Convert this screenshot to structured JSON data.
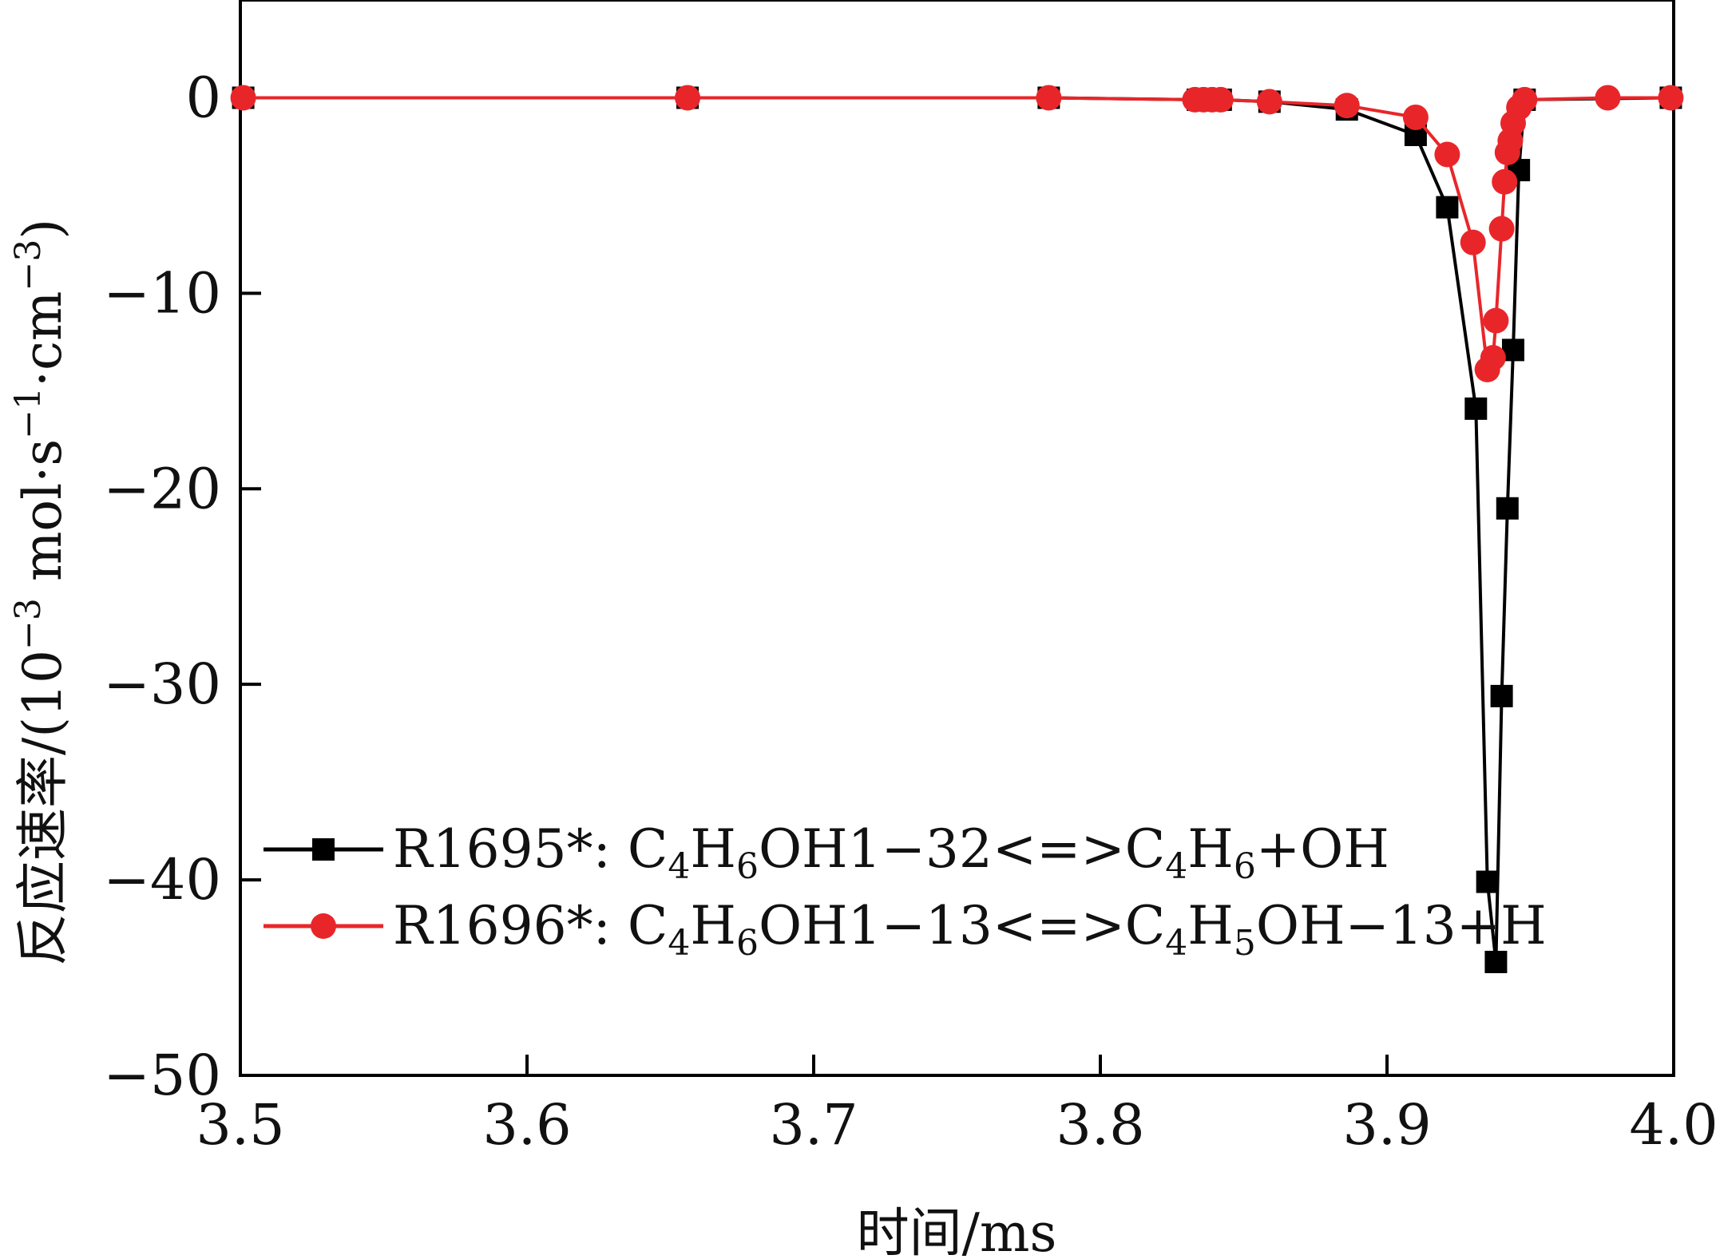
{
  "chart_data": {
    "type": "line",
    "xlabel": "时间/ms",
    "ylabel_main": "反应速率/(10",
    "ylabel_sup1": "−3",
    "ylabel_mid": " mol·s",
    "ylabel_sup2": "−1",
    "ylabel_mid2": "·cm",
    "ylabel_sup3": "−3",
    "ylabel_end": ")",
    "xlim": [
      3.5,
      4.0
    ],
    "ylim": [
      -50,
      5
    ],
    "x_ticks": [
      3.5,
      3.6,
      3.7,
      3.8,
      3.9,
      4.0
    ],
    "x_tick_labels": [
      "3.5",
      "3.6",
      "3.7",
      "3.8",
      "3.9",
      "4.0"
    ],
    "y_ticks": [
      0,
      -10,
      -20,
      -30,
      -40,
      -50
    ],
    "y_tick_labels": [
      "0",
      "−10",
      "−20",
      "−30",
      "−40",
      "−50"
    ],
    "grid": false,
    "legend_position": "lower-left",
    "series": [
      {
        "name": "R1695*: C4H6OH1−32<=>C4H6+OH",
        "legend": {
          "a": "R1695*: C",
          "s1": "4",
          "b": "H",
          "s2": "6",
          "c": "OH1−32<=>C",
          "s3": "4",
          "d": "H",
          "s4": "6",
          "e": "+OH",
          "s5": "",
          "f": ""
        },
        "color": "#000000",
        "marker": "square",
        "x": [
          3.501,
          3.656,
          3.782,
          3.834,
          3.838,
          3.842,
          3.859,
          3.886,
          3.91,
          3.921,
          3.931,
          3.935,
          3.938,
          3.94,
          3.942,
          3.944,
          3.946,
          3.948,
          3.999
        ],
        "y": [
          0,
          0,
          0,
          -0.1,
          -0.1,
          -0.1,
          -0.2,
          -0.6,
          -1.9,
          -5.6,
          -15.9,
          -40.1,
          -44.2,
          -30.6,
          -21.0,
          -12.9,
          -3.7,
          -0.1,
          0
        ]
      },
      {
        "name": "R1696*: C4H6OH1−13<=>C4H5OH−13+H",
        "legend": {
          "a": "R1696*: C",
          "s1": "4",
          "b": "H",
          "s2": "6",
          "c": "OH1−13<=>C",
          "s3": "4",
          "d": "H",
          "s4": "5",
          "e": "OH−13+H",
          "s5": "",
          "f": ""
        },
        "color": "#e8262a",
        "marker": "circle",
        "x": [
          3.501,
          3.656,
          3.782,
          3.833,
          3.836,
          3.839,
          3.842,
          3.859,
          3.886,
          3.91,
          3.921,
          3.93,
          3.935,
          3.937,
          3.938,
          3.94,
          3.941,
          3.942,
          3.943,
          3.944,
          3.946,
          3.948,
          3.977,
          3.999
        ],
        "y": [
          0,
          0,
          0,
          -0.1,
          -0.1,
          -0.1,
          -0.1,
          -0.2,
          -0.4,
          -1.0,
          -2.9,
          -7.4,
          -13.9,
          -13.3,
          -11.4,
          -6.7,
          -4.3,
          -2.8,
          -2.2,
          -1.3,
          -0.5,
          -0.1,
          0,
          0
        ]
      }
    ]
  }
}
